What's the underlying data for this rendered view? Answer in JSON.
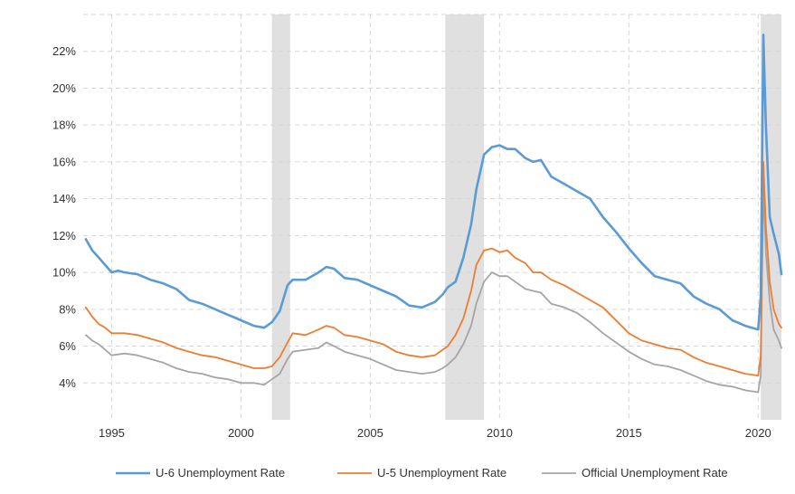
{
  "chart_data": {
    "type": "line",
    "title": "",
    "xlabel": "",
    "ylabel": "",
    "xlim": [
      1993.9,
      2020.9
    ],
    "ylim": [
      2,
      24
    ],
    "y_ticks": [
      4,
      6,
      8,
      10,
      12,
      14,
      16,
      18,
      20,
      22
    ],
    "y_tick_labels": [
      "4%",
      "6%",
      "8%",
      "10%",
      "12%",
      "14%",
      "16%",
      "18%",
      "20%",
      "22%"
    ],
    "x_ticks": [
      1995,
      2000,
      2005,
      2010,
      2015,
      2020
    ],
    "x_tick_labels": [
      "1995",
      "2000",
      "2005",
      "2010",
      "2015",
      "2020"
    ],
    "grid": true,
    "legend_position": "bottom",
    "recessions": [
      [
        2001.2,
        2001.9
      ],
      [
        2007.9,
        2009.4
      ],
      [
        2020.1,
        2020.9
      ]
    ],
    "series": [
      {
        "name": "U-6 Unemployment Rate",
        "color": "#5b9bd5",
        "x": [
          1994.0,
          1994.25,
          1994.5,
          1994.75,
          1995.0,
          1995.25,
          1995.5,
          1996.0,
          1996.5,
          1997.0,
          1997.5,
          1998.0,
          1998.5,
          1999.0,
          1999.5,
          2000.0,
          2000.5,
          2000.9,
          2001.2,
          2001.5,
          2001.8,
          2002.0,
          2002.5,
          2003.0,
          2003.3,
          2003.6,
          2004.0,
          2004.5,
          2005.0,
          2005.5,
          2006.0,
          2006.5,
          2007.0,
          2007.5,
          2007.8,
          2008.0,
          2008.3,
          2008.6,
          2008.9,
          2009.1,
          2009.4,
          2009.7,
          2010.0,
          2010.3,
          2010.6,
          2011.0,
          2011.3,
          2011.6,
          2012.0,
          2012.5,
          2013.0,
          2013.5,
          2014.0,
          2014.5,
          2015.0,
          2015.5,
          2016.0,
          2016.5,
          2017.0,
          2017.5,
          2018.0,
          2018.5,
          2019.0,
          2019.5,
          2020.0,
          2020.1,
          2020.2,
          2020.3,
          2020.45,
          2020.6,
          2020.8,
          2020.9
        ],
        "values": [
          11.8,
          11.2,
          10.8,
          10.4,
          10.0,
          10.1,
          10.0,
          9.9,
          9.6,
          9.4,
          9.1,
          8.5,
          8.3,
          8.0,
          7.7,
          7.4,
          7.1,
          7.0,
          7.3,
          7.9,
          9.3,
          9.6,
          9.6,
          10.0,
          10.3,
          10.2,
          9.7,
          9.6,
          9.3,
          9.0,
          8.7,
          8.2,
          8.1,
          8.4,
          8.8,
          9.2,
          9.5,
          10.8,
          12.6,
          14.5,
          16.4,
          16.8,
          16.9,
          16.7,
          16.7,
          16.2,
          16.0,
          16.1,
          15.2,
          14.8,
          14.4,
          14.0,
          13.0,
          12.2,
          11.3,
          10.5,
          9.8,
          9.6,
          9.4,
          8.7,
          8.3,
          8.0,
          7.4,
          7.1,
          6.9,
          8.7,
          22.9,
          18.0,
          13.0,
          12.1,
          11.0,
          9.9
        ]
      },
      {
        "name": "U-5 Unemployment Rate",
        "color": "#ed7d31",
        "x": [
          1994.0,
          1994.25,
          1994.5,
          1994.75,
          1995.0,
          1995.5,
          1996.0,
          1996.5,
          1997.0,
          1997.5,
          1998.0,
          1998.5,
          1999.0,
          1999.5,
          2000.0,
          2000.5,
          2000.9,
          2001.2,
          2001.5,
          2001.8,
          2002.0,
          2002.5,
          2003.0,
          2003.3,
          2003.6,
          2004.0,
          2004.5,
          2005.0,
          2005.5,
          2006.0,
          2006.5,
          2007.0,
          2007.5,
          2007.8,
          2008.0,
          2008.3,
          2008.6,
          2008.9,
          2009.1,
          2009.4,
          2009.7,
          2010.0,
          2010.3,
          2010.6,
          2011.0,
          2011.3,
          2011.6,
          2012.0,
          2012.5,
          2013.0,
          2013.5,
          2014.0,
          2014.5,
          2015.0,
          2015.5,
          2016.0,
          2016.5,
          2017.0,
          2017.5,
          2018.0,
          2018.5,
          2019.0,
          2019.5,
          2020.0,
          2020.1,
          2020.2,
          2020.3,
          2020.45,
          2020.6,
          2020.8,
          2020.9
        ],
        "values": [
          8.1,
          7.6,
          7.2,
          7.0,
          6.7,
          6.7,
          6.6,
          6.4,
          6.2,
          5.9,
          5.7,
          5.5,
          5.4,
          5.2,
          5.0,
          4.8,
          4.8,
          4.9,
          5.4,
          6.2,
          6.7,
          6.6,
          6.9,
          7.1,
          7.0,
          6.6,
          6.5,
          6.3,
          6.1,
          5.7,
          5.5,
          5.4,
          5.5,
          5.8,
          6.0,
          6.6,
          7.5,
          9.0,
          10.4,
          11.2,
          11.3,
          11.1,
          11.2,
          10.8,
          10.5,
          10.0,
          10.0,
          9.6,
          9.3,
          8.9,
          8.5,
          8.1,
          7.4,
          6.7,
          6.3,
          6.1,
          5.9,
          5.8,
          5.4,
          5.1,
          4.9,
          4.7,
          4.5,
          4.4,
          5.5,
          16.0,
          12.5,
          9.5,
          8.0,
          7.2,
          7.0
        ]
      },
      {
        "name": "Official Unemployment Rate",
        "color": "#a5a5a5",
        "x": [
          1994.0,
          1994.25,
          1994.5,
          1994.75,
          1995.0,
          1995.5,
          1996.0,
          1996.5,
          1997.0,
          1997.5,
          1998.0,
          1998.5,
          1999.0,
          1999.5,
          2000.0,
          2000.5,
          2000.9,
          2001.2,
          2001.5,
          2001.8,
          2002.0,
          2002.5,
          2003.0,
          2003.3,
          2003.6,
          2004.0,
          2004.5,
          2005.0,
          2005.5,
          2006.0,
          2006.5,
          2007.0,
          2007.5,
          2007.8,
          2008.0,
          2008.3,
          2008.6,
          2008.9,
          2009.1,
          2009.4,
          2009.7,
          2010.0,
          2010.3,
          2010.6,
          2011.0,
          2011.3,
          2011.6,
          2012.0,
          2012.5,
          2013.0,
          2013.5,
          2014.0,
          2014.5,
          2015.0,
          2015.5,
          2016.0,
          2016.5,
          2017.0,
          2017.5,
          2018.0,
          2018.5,
          2019.0,
          2019.5,
          2020.0,
          2020.1,
          2020.2,
          2020.3,
          2020.45,
          2020.6,
          2020.8,
          2020.9
        ],
        "values": [
          6.6,
          6.3,
          6.1,
          5.8,
          5.5,
          5.6,
          5.5,
          5.3,
          5.1,
          4.8,
          4.6,
          4.5,
          4.3,
          4.2,
          4.0,
          4.0,
          3.9,
          4.2,
          4.5,
          5.3,
          5.7,
          5.8,
          5.9,
          6.2,
          6.0,
          5.7,
          5.5,
          5.3,
          5.0,
          4.7,
          4.6,
          4.5,
          4.6,
          4.8,
          5.0,
          5.4,
          6.1,
          7.1,
          8.3,
          9.5,
          10.0,
          9.8,
          9.8,
          9.5,
          9.1,
          9.0,
          8.9,
          8.3,
          8.1,
          7.8,
          7.3,
          6.7,
          6.2,
          5.7,
          5.3,
          5.0,
          4.9,
          4.7,
          4.4,
          4.1,
          3.9,
          3.8,
          3.6,
          3.5,
          4.4,
          14.7,
          11.1,
          8.4,
          6.9,
          6.3,
          5.9
        ]
      }
    ]
  }
}
